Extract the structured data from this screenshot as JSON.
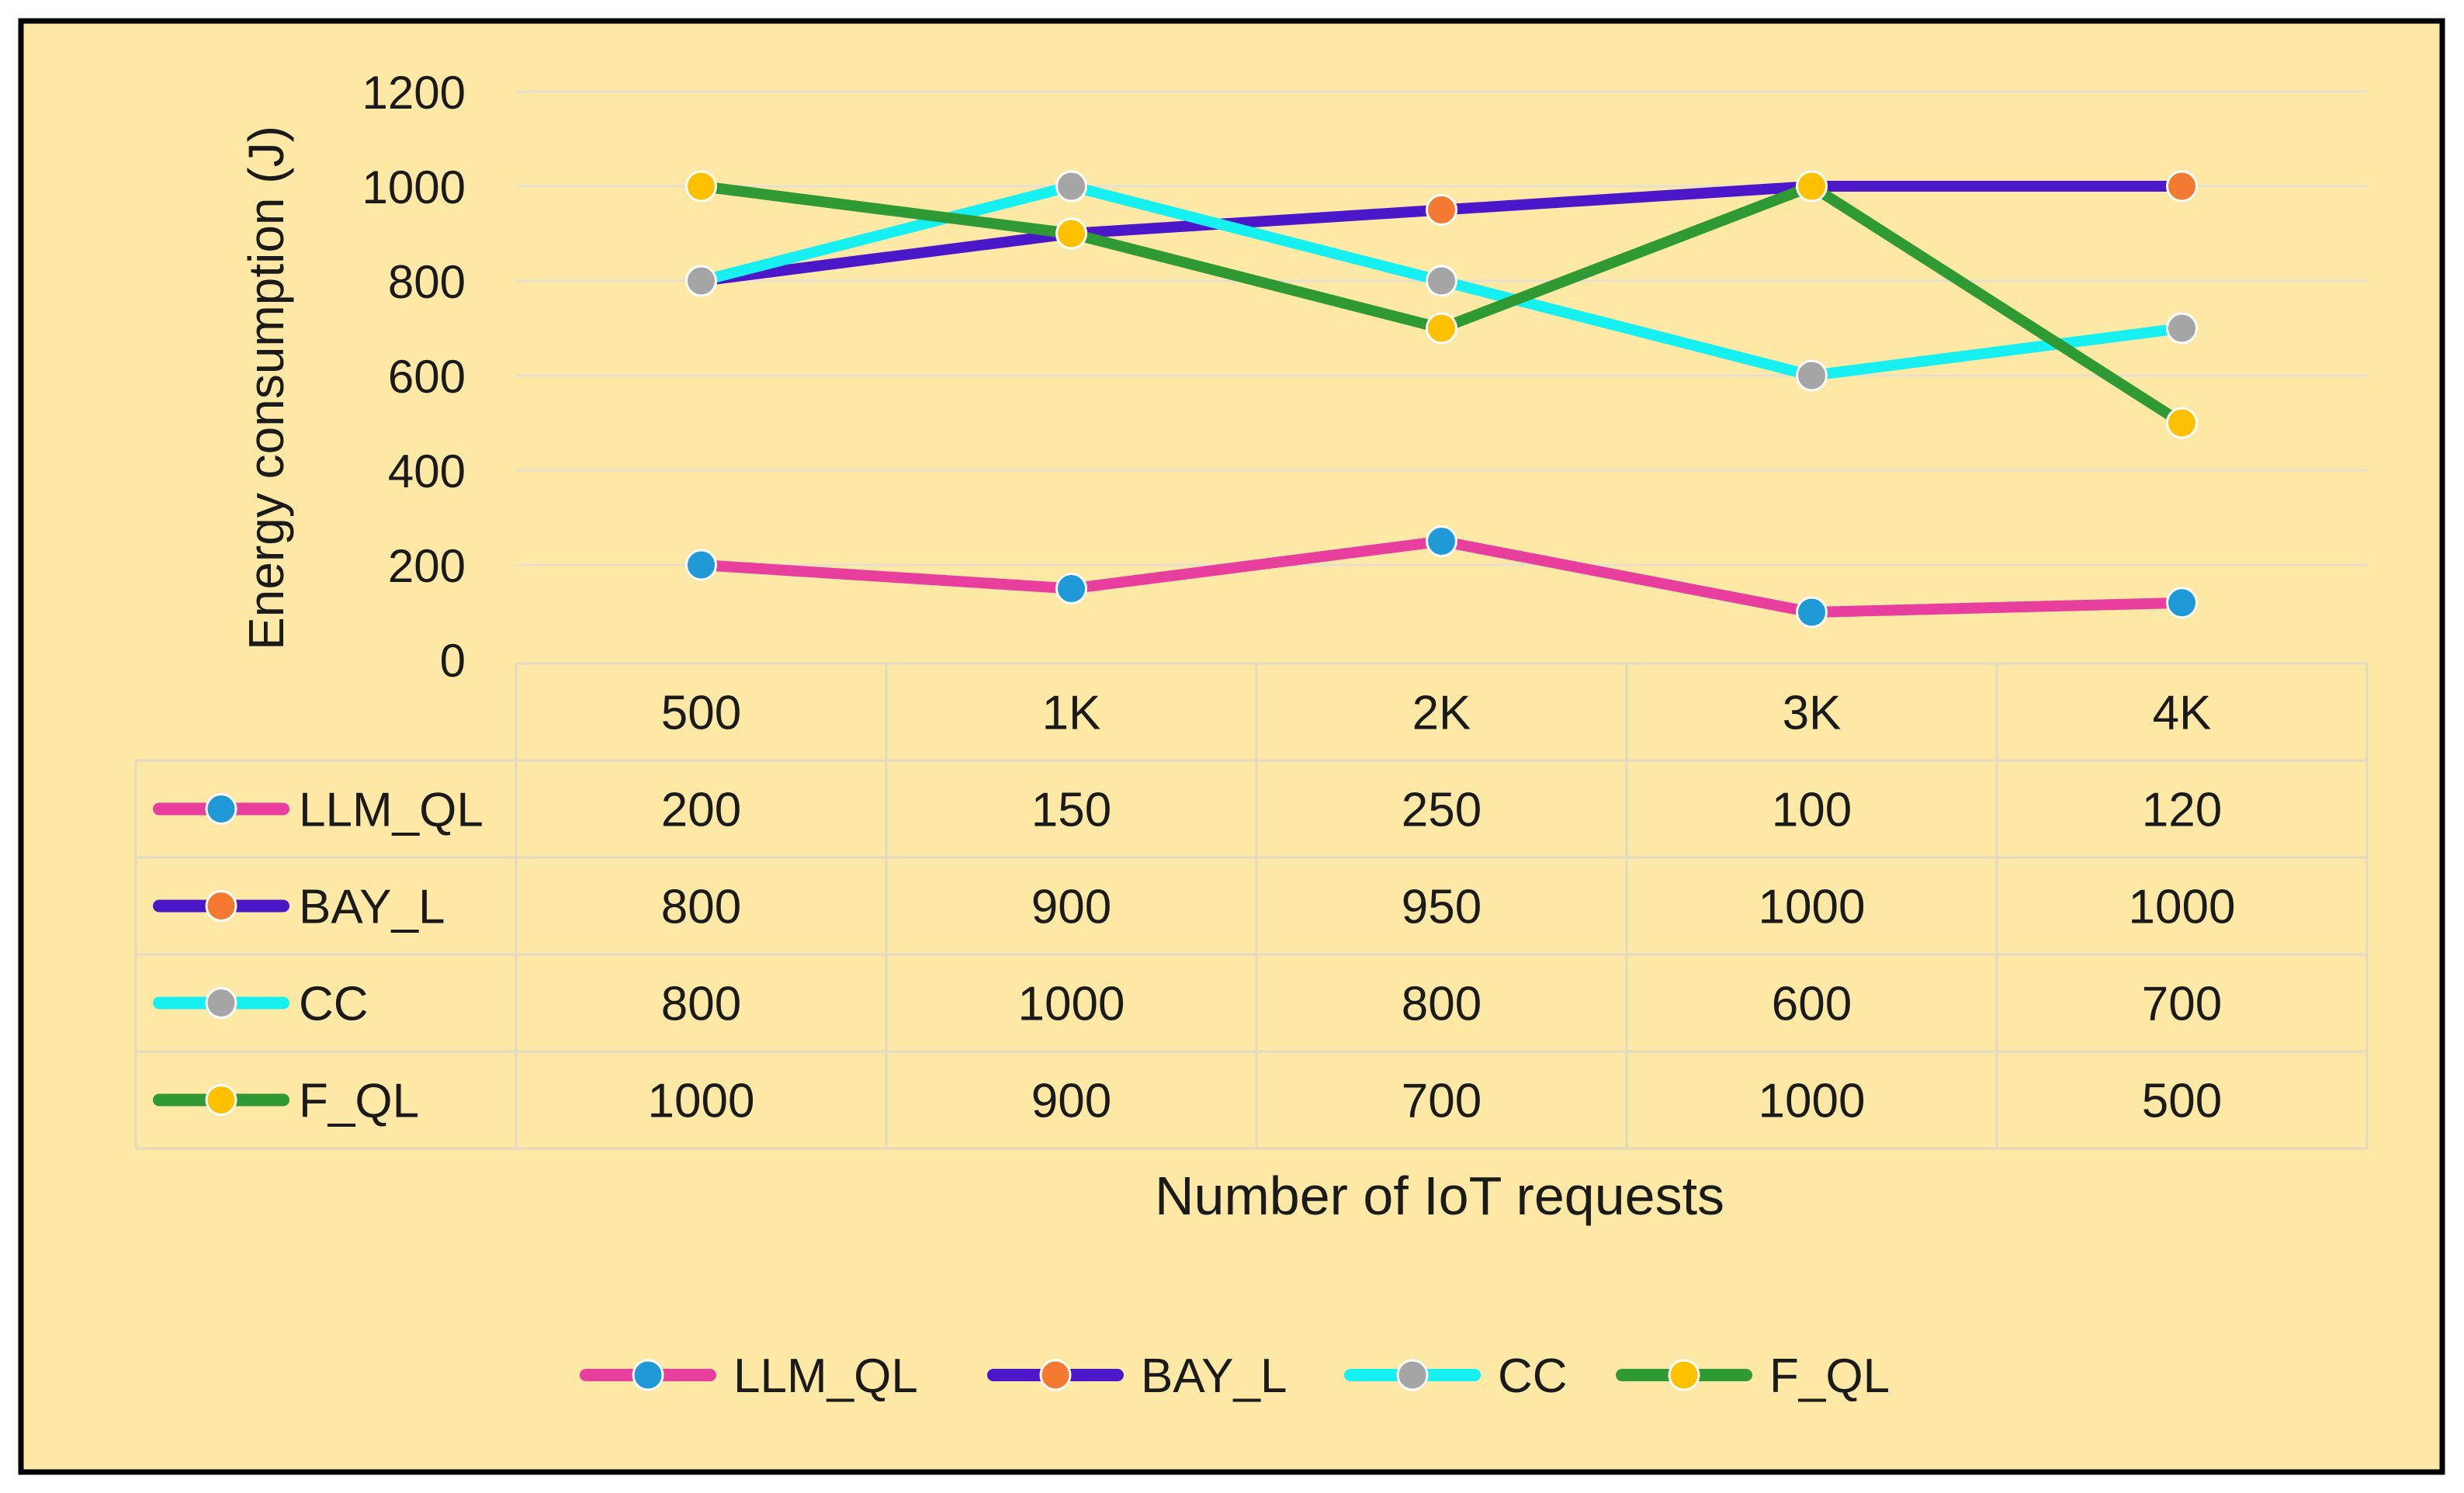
{
  "chart_data": {
    "type": "line",
    "categories": [
      "500",
      "1K",
      "2K",
      "3K",
      "4K"
    ],
    "series": [
      {
        "name": "LLM_QL",
        "values": [
          200,
          150,
          250,
          100,
          120
        ],
        "line_color": "#e83e9e",
        "marker_color": "#1f9ad6"
      },
      {
        "name": "BAY_L",
        "values": [
          800,
          900,
          950,
          1000,
          1000
        ],
        "line_color": "#4b17c9",
        "marker_color": "#f37a30"
      },
      {
        "name": "CC",
        "values": [
          800,
          1000,
          800,
          600,
          700
        ],
        "line_color": "#17f0f0",
        "marker_color": "#a5a5a5"
      },
      {
        "name": "F_QL",
        "values": [
          1000,
          900,
          700,
          1000,
          500
        ],
        "line_color": "#2f9a34",
        "marker_color": "#ffc000"
      }
    ],
    "ylabel": "Energy consumption (J)",
    "xlabel": "Number of IoT requests",
    "ylim": [
      0,
      1200
    ],
    "yticks": [
      0,
      200,
      400,
      600,
      800,
      1000,
      1200
    ],
    "grid": true,
    "legend": "bottom",
    "data_table": true,
    "background_color": "#fde8a6"
  }
}
